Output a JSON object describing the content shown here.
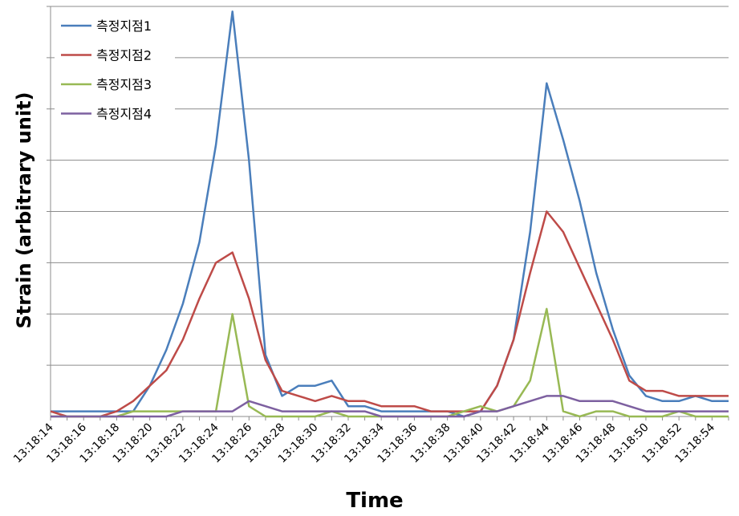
{
  "chart_data": {
    "type": "line",
    "xlabel": "Time",
    "ylabel": "Strain (arbitrary unit)",
    "ylim": [
      0,
      8
    ],
    "grid": true,
    "legend_position": "top-left",
    "categories": [
      "13:18:14",
      "13:18:15",
      "13:18:16",
      "13:18:17",
      "13:18:18",
      "13:18:19",
      "13:18:20",
      "13:18:21",
      "13:18:22",
      "13:18:23",
      "13:18:24",
      "13:18:25",
      "13:18:26",
      "13:18:27",
      "13:18:28",
      "13:18:29",
      "13:18:30",
      "13:18:31",
      "13:18:32",
      "13:18:33",
      "13:18:34",
      "13:18:35",
      "13:18:36",
      "13:18:37",
      "13:18:38",
      "13:18:39",
      "13:18:40",
      "13:18:41",
      "13:18:42",
      "13:18:43",
      "13:18:44",
      "13:18:45",
      "13:18:46",
      "13:18:47",
      "13:18:48",
      "13:18:49",
      "13:18:50",
      "13:18:51",
      "13:18:52",
      "13:18:53",
      "13:18:54",
      "13:18:55"
    ],
    "tick_labels": [
      "13:18:14",
      "13:18:16",
      "13:18:18",
      "13:18:20",
      "13:18:22",
      "13:18:24",
      "13:18:26",
      "13:18:28",
      "13:18:30",
      "13:18:32",
      "13:18:34",
      "13:18:36",
      "13:18:38",
      "13:18:40",
      "13:18:42",
      "13:18:44",
      "13:18:46",
      "13:18:48",
      "13:18:50",
      "13:18:52",
      "13:18:54"
    ],
    "series": [
      {
        "name": "측정지점1",
        "color": "#4a7ebb",
        "values": [
          0.1,
          0.1,
          0.1,
          0.1,
          0.1,
          0.1,
          0.6,
          1.3,
          2.2,
          3.4,
          5.3,
          7.9,
          5.0,
          1.2,
          0.4,
          0.6,
          0.6,
          0.7,
          0.2,
          0.2,
          0.1,
          0.1,
          0.1,
          0.1,
          0.1,
          0.0,
          0.1,
          0.6,
          1.5,
          3.6,
          6.5,
          5.4,
          4.2,
          2.8,
          1.7,
          0.8,
          0.4,
          0.3,
          0.3,
          0.4,
          0.3,
          0.3
        ]
      },
      {
        "name": "측정지점2",
        "color": "#be4b48",
        "values": [
          0.1,
          0.0,
          0.0,
          0.0,
          0.1,
          0.3,
          0.6,
          0.9,
          1.5,
          2.3,
          3.0,
          3.2,
          2.3,
          1.1,
          0.5,
          0.4,
          0.3,
          0.4,
          0.3,
          0.3,
          0.2,
          0.2,
          0.2,
          0.1,
          0.1,
          0.1,
          0.1,
          0.6,
          1.5,
          2.8,
          4.0,
          3.6,
          2.9,
          2.2,
          1.5,
          0.7,
          0.5,
          0.5,
          0.4,
          0.4,
          0.4,
          0.4
        ]
      },
      {
        "name": "측정지점3",
        "color": "#98b954",
        "values": [
          0.0,
          0.0,
          0.0,
          0.0,
          0.0,
          0.1,
          0.1,
          0.1,
          0.1,
          0.1,
          0.1,
          2.0,
          0.2,
          0.0,
          0.0,
          0.0,
          0.0,
          0.1,
          0.0,
          0.0,
          0.0,
          0.0,
          0.0,
          0.0,
          0.0,
          0.1,
          0.2,
          0.1,
          0.2,
          0.7,
          2.1,
          0.1,
          0.0,
          0.1,
          0.1,
          0.0,
          0.0,
          0.0,
          0.1,
          0.0,
          0.0,
          0.0
        ]
      },
      {
        "name": "측정지점4",
        "color": "#7d60a0",
        "values": [
          0.0,
          0.0,
          0.0,
          0.0,
          0.0,
          0.0,
          0.0,
          0.0,
          0.1,
          0.1,
          0.1,
          0.1,
          0.3,
          0.2,
          0.1,
          0.1,
          0.1,
          0.1,
          0.1,
          0.1,
          0.0,
          0.0,
          0.0,
          0.0,
          0.0,
          0.0,
          0.1,
          0.1,
          0.2,
          0.3,
          0.4,
          0.4,
          0.3,
          0.3,
          0.3,
          0.2,
          0.1,
          0.1,
          0.1,
          0.1,
          0.1,
          0.1
        ]
      }
    ]
  }
}
